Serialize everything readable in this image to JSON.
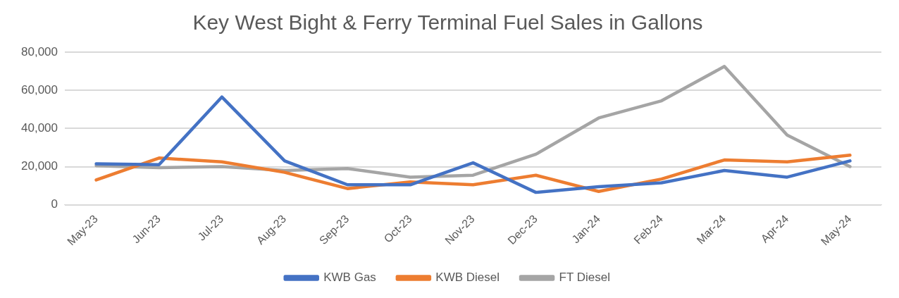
{
  "chart_data": {
    "type": "line",
    "title": "Key West Bight & Ferry Terminal Fuel Sales in Gallons",
    "categories": [
      "May-23",
      "Jun-23",
      "Jul-23",
      "Aug-23",
      "Sep-23",
      "Oct-23",
      "Nov-23",
      "Dec-23",
      "Jan-24",
      "Feb-24",
      "Mar-24",
      "Apr-24",
      "May-24"
    ],
    "series": [
      {
        "name": "KWB Gas",
        "color": "#4472c4",
        "values": [
          21500,
          21000,
          56500,
          23000,
          10500,
          10500,
          22000,
          6500,
          9500,
          11500,
          18000,
          14500,
          23000
        ]
      },
      {
        "name": "KWB Diesel",
        "color": "#ed7d31",
        "values": [
          13000,
          24500,
          22500,
          17000,
          8500,
          12000,
          10500,
          15500,
          7000,
          13500,
          23500,
          22500,
          26000
        ]
      },
      {
        "name": "FT Diesel",
        "color": "#a5a5a5",
        "values": [
          20500,
          19500,
          20000,
          18000,
          19000,
          14500,
          15500,
          26500,
          45500,
          54500,
          72500,
          36500,
          20000
        ]
      }
    ],
    "ylim": [
      0,
      80000
    ],
    "yticks": [
      {
        "value": 0,
        "label": "0"
      },
      {
        "value": 20000,
        "label": "20,000"
      },
      {
        "value": 40000,
        "label": "40,000"
      },
      {
        "value": 60000,
        "label": "60,000"
      },
      {
        "value": 80000,
        "label": "80,000"
      }
    ],
    "grid": "y",
    "legend": "bottom",
    "marker": "none",
    "line_style": "solid"
  }
}
